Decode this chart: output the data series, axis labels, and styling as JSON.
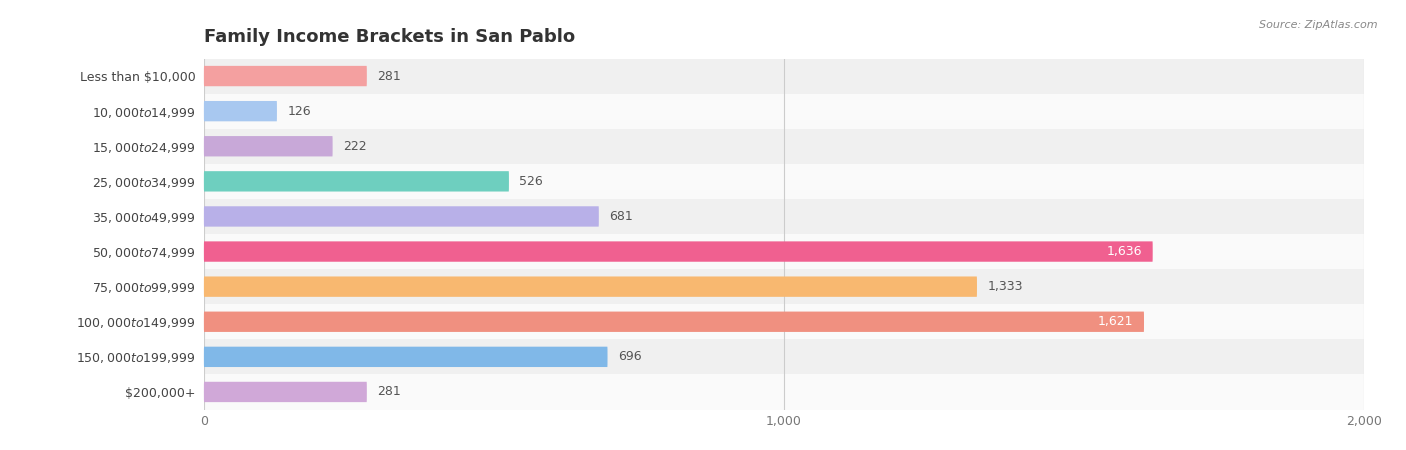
{
  "title": "Family Income Brackets in San Pablo",
  "source": "Source: ZipAtlas.com",
  "categories": [
    "Less than $10,000",
    "$10,000 to $14,999",
    "$15,000 to $24,999",
    "$25,000 to $34,999",
    "$35,000 to $49,999",
    "$50,000 to $74,999",
    "$75,000 to $99,999",
    "$100,000 to $149,999",
    "$150,000 to $199,999",
    "$200,000+"
  ],
  "values": [
    281,
    126,
    222,
    526,
    681,
    1636,
    1333,
    1621,
    696,
    281
  ],
  "bar_colors": [
    "#f4a0a0",
    "#a8c8f0",
    "#c8a8d8",
    "#6ecfbf",
    "#b8b0e8",
    "#f06090",
    "#f8b870",
    "#f09080",
    "#80b8e8",
    "#d0a8d8"
  ],
  "bg_row_colors": [
    "#f0f0f0",
    "#fafafa"
  ],
  "xlim": [
    0,
    2000
  ],
  "xlabel_ticks": [
    0,
    1000,
    2000
  ],
  "title_fontsize": 13,
  "label_fontsize": 9,
  "value_fontsize": 9,
  "bar_height": 0.58,
  "fig_width": 14.06,
  "fig_height": 4.5,
  "dpi": 100
}
